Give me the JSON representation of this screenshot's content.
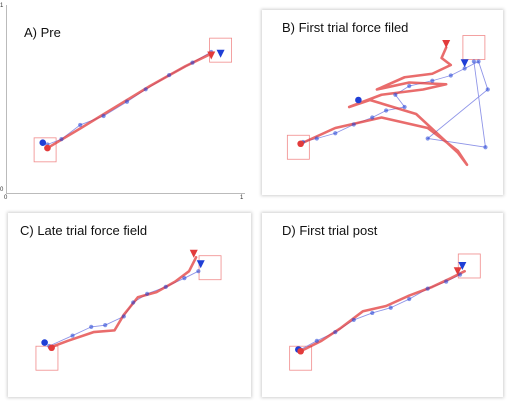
{
  "colors": {
    "red": "#e23b3b",
    "pink": "#f08a8a",
    "blue": "#1f3fd6",
    "lightblue": "#8f95e8",
    "frame": "#bbbbbb"
  },
  "ticks": {
    "y_top": "1",
    "y_bottom": "0",
    "x_left": "0",
    "x_right": "1"
  },
  "chart_data": [
    {
      "type": "scatter",
      "title": "A) Pre",
      "ylim": [
        0,
        1
      ],
      "xlim": [
        0,
        1
      ],
      "start_target": [
        0.15,
        0.22
      ],
      "end_target": [
        0.9,
        0.78
      ],
      "hand_path": [
        [
          0.16,
          0.23
        ],
        [
          0.3,
          0.34
        ],
        [
          0.45,
          0.46
        ],
        [
          0.6,
          0.58
        ],
        [
          0.75,
          0.69
        ],
        [
          0.86,
          0.76
        ]
      ],
      "cursor_points": [
        [
          0.16,
          0.25
        ],
        [
          0.22,
          0.28
        ],
        [
          0.3,
          0.36
        ],
        [
          0.4,
          0.41
        ],
        [
          0.5,
          0.49
        ],
        [
          0.58,
          0.56
        ],
        [
          0.68,
          0.64
        ],
        [
          0.78,
          0.71
        ],
        [
          0.86,
          0.77
        ]
      ],
      "start_markers": {
        "red_dot": [
          0.16,
          0.23
        ],
        "blue_dot": [
          0.14,
          0.26
        ]
      },
      "end_markers": {
        "red_triangle": [
          0.86,
          0.75
        ],
        "blue_triangle": [
          0.9,
          0.76
        ]
      }
    },
    {
      "type": "scatter",
      "title": "B) First trial force filed",
      "ylim": [
        0,
        1
      ],
      "xlim": [
        0,
        1
      ],
      "start_target": [
        0.14,
        0.25
      ],
      "end_target": [
        0.9,
        0.82
      ],
      "hand_path": [
        [
          0.15,
          0.27
        ],
        [
          0.3,
          0.36
        ],
        [
          0.5,
          0.42
        ],
        [
          0.7,
          0.36
        ],
        [
          0.83,
          0.23
        ],
        [
          0.87,
          0.15
        ],
        [
          0.83,
          0.22
        ],
        [
          0.65,
          0.44
        ],
        [
          0.45,
          0.52
        ],
        [
          0.36,
          0.48
        ],
        [
          0.5,
          0.55
        ],
        [
          0.68,
          0.58
        ],
        [
          0.78,
          0.61
        ],
        [
          0.62,
          0.62
        ],
        [
          0.48,
          0.58
        ],
        [
          0.6,
          0.65
        ],
        [
          0.72,
          0.67
        ],
        [
          0.8,
          0.72
        ],
        [
          0.76,
          0.76
        ],
        [
          0.78,
          0.82
        ]
      ],
      "cursor_points": [
        [
          0.16,
          0.28
        ],
        [
          0.22,
          0.3
        ],
        [
          0.3,
          0.33
        ],
        [
          0.38,
          0.38
        ],
        [
          0.46,
          0.42
        ],
        [
          0.52,
          0.46
        ],
        [
          0.6,
          0.48
        ],
        [
          0.56,
          0.55
        ],
        [
          0.62,
          0.6
        ],
        [
          0.72,
          0.63
        ],
        [
          0.8,
          0.66
        ],
        [
          0.86,
          0.7
        ],
        [
          0.92,
          0.74
        ],
        [
          0.96,
          0.58
        ],
        [
          0.7,
          0.3
        ],
        [
          0.95,
          0.25
        ],
        [
          0.9,
          0.74
        ]
      ],
      "start_markers": {
        "red_dot": [
          0.15,
          0.27
        ],
        "blue_dot": [
          0.4,
          0.52
        ]
      },
      "end_markers": {
        "red_triangle": [
          0.78,
          0.84
        ],
        "blue_triangle": [
          0.86,
          0.73
        ]
      }
    },
    {
      "type": "scatter",
      "title": "C) Late trial force field",
      "ylim": [
        0,
        1
      ],
      "xlim": [
        0,
        1
      ],
      "start_target": [
        0.15,
        0.2
      ],
      "end_target": [
        0.85,
        0.72
      ],
      "hand_path": [
        [
          0.16,
          0.26
        ],
        [
          0.24,
          0.3
        ],
        [
          0.35,
          0.35
        ],
        [
          0.44,
          0.36
        ],
        [
          0.48,
          0.45
        ],
        [
          0.54,
          0.55
        ],
        [
          0.62,
          0.58
        ],
        [
          0.7,
          0.64
        ],
        [
          0.76,
          0.7
        ],
        [
          0.79,
          0.78
        ]
      ],
      "cursor_points": [
        [
          0.16,
          0.27
        ],
        [
          0.26,
          0.33
        ],
        [
          0.34,
          0.38
        ],
        [
          0.4,
          0.39
        ],
        [
          0.48,
          0.44
        ],
        [
          0.52,
          0.52
        ],
        [
          0.58,
          0.57
        ],
        [
          0.66,
          0.61
        ],
        [
          0.74,
          0.66
        ],
        [
          0.8,
          0.7
        ]
      ],
      "start_markers": {
        "red_dot": [
          0.17,
          0.26
        ],
        "blue_dot": [
          0.14,
          0.29
        ]
      },
      "end_markers": {
        "red_triangle": [
          0.78,
          0.8
        ],
        "blue_triangle": [
          0.81,
          0.74
        ]
      }
    },
    {
      "type": "scatter",
      "title": "D) First trial post",
      "ylim": [
        0,
        1
      ],
      "xlim": [
        0,
        1
      ],
      "start_target": [
        0.15,
        0.2
      ],
      "end_target": [
        0.88,
        0.73
      ],
      "hand_path": [
        [
          0.15,
          0.24
        ],
        [
          0.24,
          0.3
        ],
        [
          0.32,
          0.37
        ],
        [
          0.42,
          0.47
        ],
        [
          0.52,
          0.5
        ],
        [
          0.62,
          0.56
        ],
        [
          0.72,
          0.61
        ],
        [
          0.8,
          0.66
        ],
        [
          0.86,
          0.7
        ]
      ],
      "cursor_points": [
        [
          0.15,
          0.25
        ],
        [
          0.22,
          0.3
        ],
        [
          0.3,
          0.35
        ],
        [
          0.38,
          0.42
        ],
        [
          0.46,
          0.46
        ],
        [
          0.54,
          0.49
        ],
        [
          0.62,
          0.54
        ],
        [
          0.7,
          0.6
        ],
        [
          0.78,
          0.64
        ],
        [
          0.84,
          0.68
        ]
      ],
      "start_markers": {
        "red_dot": [
          0.15,
          0.24
        ],
        "blue_dot": [
          0.14,
          0.25
        ]
      },
      "end_markers": {
        "red_triangle": [
          0.83,
          0.7
        ],
        "blue_triangle": [
          0.85,
          0.73
        ]
      }
    }
  ]
}
